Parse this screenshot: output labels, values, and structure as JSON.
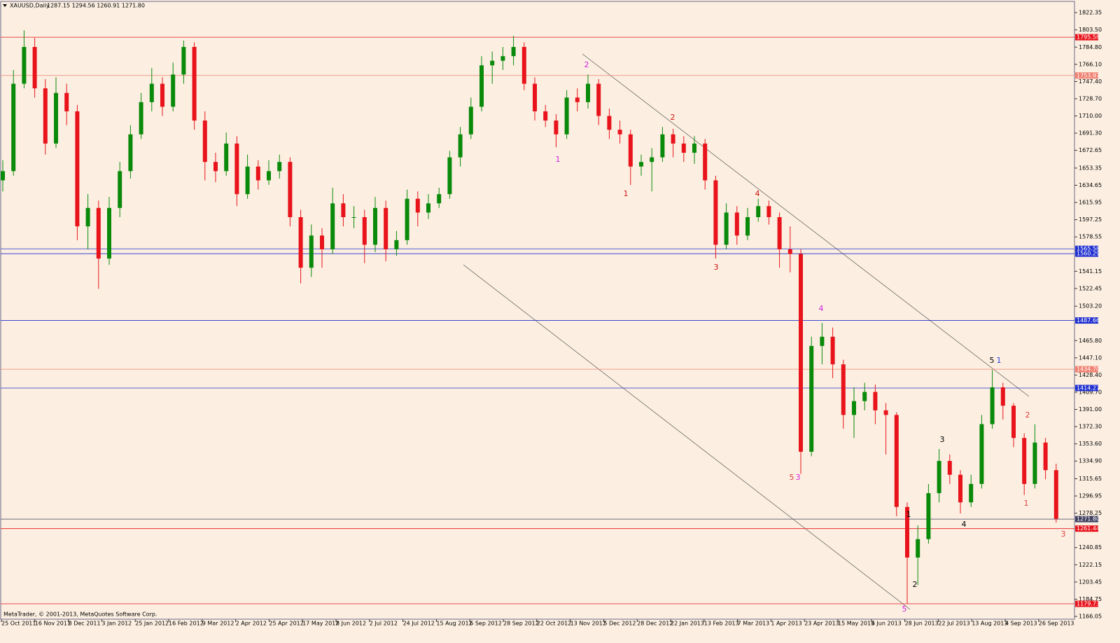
{
  "chart_data": {
    "type": "candlestick",
    "symbol": "XAUUSD,Daily",
    "header_values": "1287.15 1294.56 1260.91 1271.80",
    "footer": "MetaTrader, © 2001-2013, MetaQuotes Software Corp.",
    "up_color": "#0a8a0a",
    "down_color": "#e8131b",
    "x_labels": [
      "25 Oct 2011",
      "16 Nov 2011",
      "8 Dec 2011",
      "3 Jan 2012",
      "25 Jan 2012",
      "16 Feb 2012",
      "9 Mar 2012",
      "2 Apr 2012",
      "25 Apr 2012",
      "17 May 2012",
      "8 Jun 2012",
      "2 Jul 2012",
      "24 Jul 2012",
      "15 Aug 2012",
      "6 Sep 2012",
      "28 Sep 2012",
      "22 Oct 2012",
      "13 Nov 2012",
      "5 Dec 2012",
      "28 Dec 2012",
      "22 Jan 2013",
      "13 Feb 2013",
      "7 Mar 2013",
      "1 Apr 2013",
      "23 Apr 2013",
      "15 May 2013",
      "6 Jun 2013",
      "28 Jun 2013",
      "22 Jul 2013",
      "13 Aug 2013",
      "4 Sep 2013",
      "26 Sep 2013"
    ],
    "open": [
      1640,
      1650,
      1745,
      1785,
      1740,
      1680,
      1735,
      1715,
      1590,
      1610,
      1555,
      1610,
      1650,
      1690,
      1725,
      1745,
      1720,
      1755,
      1785,
      1705,
      1660,
      1650,
      1680,
      1625,
      1655,
      1640,
      1650,
      1660,
      1600,
      1545,
      1580,
      1565,
      1615,
      1600,
      1600,
      1570,
      1610,
      1565,
      1575,
      1620,
      1605,
      1615,
      1625,
      1665,
      1690,
      1720,
      1765,
      1770,
      1775,
      1785,
      1745,
      1715,
      1705,
      1690,
      1730,
      1725,
      1745,
      1710,
      1695,
      1690,
      1655,
      1660,
      1665,
      1690,
      1680,
      1670,
      1680,
      1640,
      1570,
      1605,
      1580,
      1600,
      1612,
      1600,
      1565,
      1560,
      1345,
      1460,
      1470,
      1440,
      1385,
      1400,
      1410,
      1390,
      1385,
      1285,
      1230,
      1250,
      1300,
      1335,
      1320,
      1290,
      1310,
      1375,
      1415,
      1395,
      1360,
      1310,
      1355,
      1325
    ],
    "high": [
      1662,
      1760,
      1803,
      1795,
      1750,
      1752,
      1745,
      1722,
      1625,
      1618,
      1622,
      1660,
      1700,
      1735,
      1762,
      1752,
      1768,
      1792,
      1790,
      1715,
      1670,
      1692,
      1688,
      1668,
      1662,
      1662,
      1668,
      1665,
      1608,
      1592,
      1588,
      1632,
      1625,
      1612,
      1608,
      1622,
      1618,
      1585,
      1630,
      1628,
      1625,
      1632,
      1672,
      1698,
      1730,
      1775,
      1780,
      1785,
      1797,
      1790,
      1752,
      1722,
      1712,
      1738,
      1740,
      1755,
      1750,
      1718,
      1705,
      1695,
      1668,
      1675,
      1698,
      1696,
      1688,
      1688,
      1685,
      1645,
      1615,
      1612,
      1610,
      1620,
      1618,
      1605,
      1590,
      1565,
      1470,
      1485,
      1480,
      1445,
      1415,
      1420,
      1418,
      1398,
      1388,
      1290,
      1265,
      1310,
      1348,
      1342,
      1325,
      1320,
      1385,
      1434,
      1420,
      1398,
      1365,
      1375,
      1360,
      1332
    ],
    "low": [
      1628,
      1645,
      1740,
      1730,
      1668,
      1675,
      1700,
      1575,
      1565,
      1522,
      1548,
      1600,
      1642,
      1685,
      1715,
      1710,
      1715,
      1745,
      1695,
      1640,
      1638,
      1645,
      1612,
      1620,
      1630,
      1635,
      1642,
      1590,
      1528,
      1535,
      1545,
      1560,
      1590,
      1588,
      1550,
      1562,
      1552,
      1558,
      1570,
      1590,
      1598,
      1610,
      1620,
      1655,
      1685,
      1715,
      1745,
      1760,
      1765,
      1738,
      1705,
      1698,
      1676,
      1685,
      1715,
      1718,
      1700,
      1685,
      1680,
      1635,
      1645,
      1628,
      1660,
      1665,
      1660,
      1658,
      1630,
      1555,
      1565,
      1570,
      1575,
      1595,
      1592,
      1545,
      1540,
      1321,
      1340,
      1440,
      1425,
      1370,
      1360,
      1390,
      1375,
      1342,
      1275,
      1180,
      1200,
      1245,
      1290,
      1310,
      1278,
      1285,
      1305,
      1370,
      1380,
      1350,
      1298,
      1305,
      1315,
      1268
    ],
    "close": [
      1650,
      1745,
      1785,
      1740,
      1680,
      1735,
      1715,
      1590,
      1610,
      1555,
      1610,
      1650,
      1690,
      1725,
      1745,
      1720,
      1755,
      1785,
      1705,
      1660,
      1650,
      1680,
      1625,
      1655,
      1640,
      1650,
      1660,
      1600,
      1545,
      1580,
      1565,
      1615,
      1600,
      1600,
      1570,
      1610,
      1565,
      1575,
      1620,
      1605,
      1615,
      1625,
      1665,
      1690,
      1720,
      1765,
      1770,
      1775,
      1785,
      1745,
      1715,
      1705,
      1690,
      1730,
      1725,
      1745,
      1710,
      1695,
      1690,
      1655,
      1660,
      1665,
      1690,
      1680,
      1670,
      1680,
      1640,
      1570,
      1605,
      1580,
      1600,
      1612,
      1600,
      1565,
      1560,
      1345,
      1460,
      1470,
      1440,
      1385,
      1400,
      1410,
      1390,
      1385,
      1285,
      1230,
      1250,
      1300,
      1335,
      1320,
      1290,
      1310,
      1375,
      1415,
      1395,
      1360,
      1310,
      1355,
      1325,
      1272
    ],
    "ylim": [
      1163,
      1834.5
    ],
    "yticks": [
      1822.35,
      {
        "value": 1803.5,
        "label": "1803.50"
      },
      {
        "value": 1784.8,
        "label": "1784.80"
      },
      {
        "value": 1766.1,
        "label": "1766.10"
      },
      {
        "value": 1747.4,
        "label": "1747.40"
      },
      {
        "value": 1728.7,
        "label": "1728.70"
      },
      {
        "value": 1710,
        "label": "1710.00"
      },
      {
        "value": 1691.3,
        "label": "1691.30"
      },
      1672.65,
      1653.35,
      1634.65,
      1615.95,
      1597.25,
      1578.55,
      1541.15,
      1522.45,
      {
        "value": 1503.2,
        "label": "1503.20"
      },
      {
        "value": 1465.8,
        "label": "1465.80"
      },
      {
        "value": 1447.1,
        "label": "1447.10"
      },
      {
        "value": 1428.4,
        "label": "1428.40"
      },
      {
        "value": 1409.7,
        "label": "1409.70"
      },
      {
        "value": 1391,
        "label": "1391.00"
      },
      {
        "value": 1372.3,
        "label": "1372.30"
      },
      {
        "value": 1353.6,
        "label": "1353.60"
      },
      {
        "value": 1334.9,
        "label": "1334.90"
      },
      1315.65,
      1296.95,
      1278.25,
      1240.85,
      1222.15,
      1203.45,
      1184.75,
      1166.05
    ],
    "levels": [
      {
        "value": 1795.58,
        "color": "#e8131b"
      },
      {
        "value": 1753.97,
        "color": "#f08070"
      },
      {
        "value": 1565.58,
        "color": "#2030d0"
      },
      {
        "value": 1560.29,
        "color": "#2030d0"
      },
      {
        "value": 1487.66,
        "color": "#2030d0"
      },
      {
        "value": 1434.7,
        "label": "1434.70",
        "color": "#f08070"
      },
      {
        "value": 1414.27,
        "color": "#2030d0"
      },
      {
        "value": 1271.8,
        "label": "1271.80",
        "color": "#404060"
      },
      {
        "value": 1261.44,
        "color": "#e8131b"
      },
      {
        "value": 1179.73,
        "color": "#e8131b"
      }
    ],
    "annotations": [
      {
        "text": "2",
        "color": "#d020e0"
      },
      {
        "text": "1",
        "color": "#d020e0"
      },
      {
        "text": "1",
        "color": "#d01010"
      },
      {
        "text": "2",
        "color": "#d01010"
      },
      {
        "text": "3",
        "color": "#d01010"
      },
      {
        "text": "4",
        "color": "#d01010"
      },
      {
        "text": "4",
        "color": "#d020e0"
      },
      {
        "text": "5",
        "color": "#e04040"
      },
      {
        "text": "3",
        "color": "#d020e0"
      },
      {
        "text": "5",
        "color": "#000000"
      },
      {
        "text": "1",
        "color": "#2040e0"
      },
      {
        "text": "1",
        "color": "#000000"
      },
      {
        "text": "2",
        "color": "#000000"
      },
      {
        "text": "5",
        "color": "#d020e0"
      },
      {
        "text": "3",
        "color": "#000000"
      },
      {
        "text": "4",
        "color": "#000000"
      },
      {
        "text": "2",
        "color": "#e04040"
      },
      {
        "text": "1",
        "color": "#e04040"
      },
      {
        "text": "3",
        "color": "#e04040"
      }
    ]
  }
}
